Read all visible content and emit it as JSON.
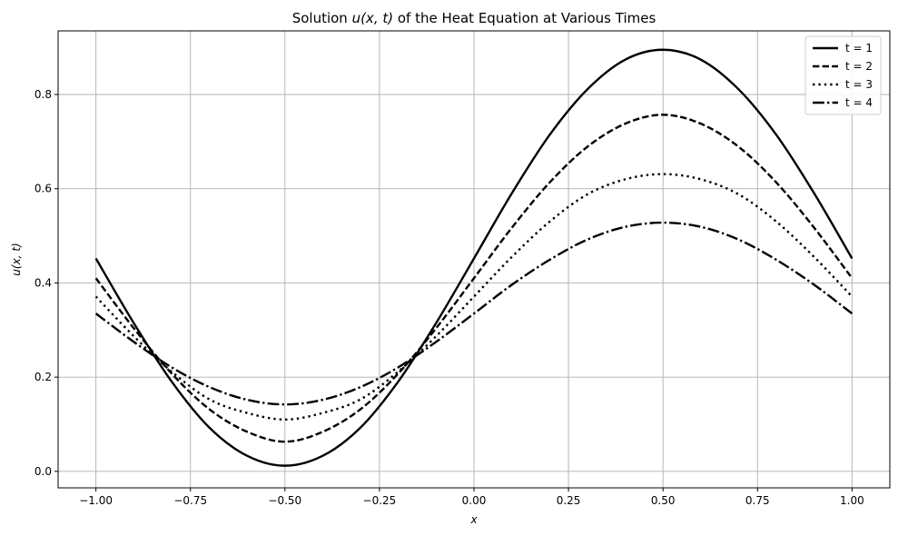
{
  "chart_data": {
    "type": "line",
    "title": {
      "prefix": "Solution ",
      "math": "u(x, t)",
      "suffix": " of the Heat Equation at Various Times"
    },
    "xlabel": "x",
    "ylabel": "u(x, t)",
    "xlim": [
      -1.1,
      1.1
    ],
    "ylim": [
      -0.035,
      0.935
    ],
    "xticks": [
      -1.0,
      -0.75,
      -0.5,
      -0.25,
      0.0,
      0.25,
      0.5,
      0.75,
      1.0
    ],
    "xtick_labels": [
      "−1.00",
      "−0.75",
      "−0.50",
      "−0.25",
      "0.00",
      "0.25",
      "0.50",
      "0.75",
      "1.00"
    ],
    "yticks": [
      0.0,
      0.2,
      0.4,
      0.6,
      0.8
    ],
    "ytick_labels": [
      "0.0",
      "0.2",
      "0.4",
      "0.6",
      "0.8"
    ],
    "grid": true,
    "legend_position": "top-right",
    "x": [
      -1.0,
      -0.9,
      -0.8,
      -0.7,
      -0.6,
      -0.5,
      -0.4,
      -0.3,
      -0.2,
      -0.1,
      0.0,
      0.1,
      0.2,
      0.3,
      0.4,
      0.5,
      0.6,
      0.7,
      0.8,
      0.9,
      1.0
    ],
    "series": [
      {
        "name": "t = 1",
        "style": "solid",
        "color": "#000000",
        "values": [
          0.452,
          0.315,
          0.191,
          0.093,
          0.033,
          0.012,
          0.033,
          0.093,
          0.191,
          0.315,
          0.452,
          0.59,
          0.714,
          0.811,
          0.874,
          0.895,
          0.874,
          0.811,
          0.714,
          0.59,
          0.452
        ]
      },
      {
        "name": "t = 2",
        "style": "dashed",
        "color": "#000000",
        "values": [
          0.41,
          0.304,
          0.208,
          0.132,
          0.084,
          0.063,
          0.084,
          0.132,
          0.208,
          0.304,
          0.41,
          0.517,
          0.613,
          0.689,
          0.738,
          0.757,
          0.738,
          0.689,
          0.613,
          0.517,
          0.41
        ]
      },
      {
        "name": "t = 3",
        "style": "dotted",
        "color": "#000000",
        "values": [
          0.371,
          0.287,
          0.212,
          0.153,
          0.124,
          0.11,
          0.124,
          0.153,
          0.212,
          0.287,
          0.371,
          0.455,
          0.53,
          0.588,
          0.62,
          0.631,
          0.62,
          0.588,
          0.53,
          0.455,
          0.371
        ]
      },
      {
        "name": "t = 4",
        "style": "dashdot",
        "color": "#000000",
        "values": [
          0.335,
          0.275,
          0.221,
          0.179,
          0.152,
          0.142,
          0.152,
          0.179,
          0.221,
          0.275,
          0.335,
          0.396,
          0.449,
          0.492,
          0.519,
          0.528,
          0.519,
          0.492,
          0.449,
          0.396,
          0.335
        ]
      }
    ]
  }
}
